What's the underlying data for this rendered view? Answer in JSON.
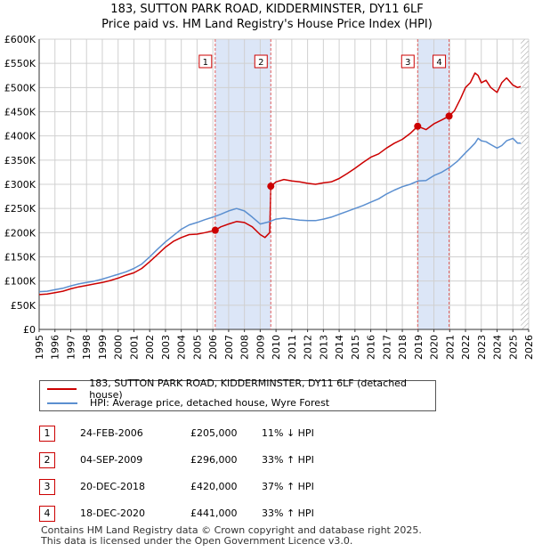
{
  "title_line1": "183, SUTTON PARK ROAD, KIDDERMINSTER, DY11 6LF",
  "title_line2": "Price paid vs. HM Land Registry's House Price Index (HPI)",
  "colors": {
    "property": "#cc0000",
    "hpi": "#5b8fd0",
    "shade": "#dce6f7",
    "grid": "#d0d0d0",
    "marker_line": "#e06060",
    "hatch": "#999999"
  },
  "chart_data": {
    "type": "line",
    "xlim": [
      1995,
      2026
    ],
    "ylim": [
      0,
      600000
    ],
    "x_ticks": [
      "1995",
      "1996",
      "1997",
      "1998",
      "1999",
      "2000",
      "2001",
      "2002",
      "2003",
      "2004",
      "2005",
      "2006",
      "2007",
      "2008",
      "2009",
      "2010",
      "2011",
      "2012",
      "2013",
      "2014",
      "2015",
      "2016",
      "2017",
      "2018",
      "2019",
      "2020",
      "2021",
      "2022",
      "2023",
      "2024",
      "2025",
      "2026"
    ],
    "y_ticks": [
      {
        "value": 0,
        "label": "£0"
      },
      {
        "value": 50000,
        "label": "£50K"
      },
      {
        "value": 100000,
        "label": "£100K"
      },
      {
        "value": 150000,
        "label": "£150K"
      },
      {
        "value": 200000,
        "label": "£200K"
      },
      {
        "value": 250000,
        "label": "£250K"
      },
      {
        "value": 300000,
        "label": "£300K"
      },
      {
        "value": 350000,
        "label": "£350K"
      },
      {
        "value": 400000,
        "label": "£400K"
      },
      {
        "value": 450000,
        "label": "£450K"
      },
      {
        "value": 500000,
        "label": "£500K"
      },
      {
        "value": 550000,
        "label": "£550K"
      },
      {
        "value": 600000,
        "label": "£600K"
      }
    ],
    "shaded_periods": [
      [
        2006.15,
        2009.67
      ],
      [
        2018.97,
        2020.96
      ]
    ],
    "future_hatch_start": 2025.5,
    "series": [
      {
        "name": "183, SUTTON PARK ROAD, KIDDERMINSTER, DY11 6LF (detached house)",
        "key": "property",
        "x": [
          1995,
          1995.5,
          1996,
          1996.5,
          1997,
          1997.5,
          1998,
          1998.5,
          1999,
          1999.5,
          2000,
          2000.5,
          2001,
          2001.5,
          2002,
          2002.5,
          2003,
          2003.5,
          2004,
          2004.5,
          2005,
          2005.5,
          2006.15,
          2006.5,
          2007,
          2007.5,
          2008,
          2008.5,
          2009,
          2009.3,
          2009.6,
          2009.67,
          2010,
          2010.5,
          2011,
          2011.5,
          2012,
          2012.5,
          2013,
          2013.5,
          2014,
          2014.5,
          2015,
          2015.5,
          2016,
          2016.5,
          2017,
          2017.5,
          2018,
          2018.5,
          2018.97,
          2019.5,
          2020,
          2020.5,
          2020.96,
          2021.3,
          2021.7,
          2022,
          2022.3,
          2022.6,
          2022.8,
          2023,
          2023.3,
          2023.6,
          2024,
          2024.3,
          2024.6,
          2025,
          2025.3,
          2025.5
        ],
        "y": [
          72000,
          73000,
          76000,
          79000,
          84000,
          88000,
          91000,
          94000,
          97000,
          101000,
          106000,
          112000,
          117000,
          126000,
          140000,
          155000,
          170000,
          182000,
          190000,
          196000,
          197000,
          200000,
          205000,
          212000,
          218000,
          223000,
          221000,
          212000,
          196000,
          190000,
          200000,
          296000,
          305000,
          310000,
          307000,
          305000,
          302000,
          300000,
          303000,
          305000,
          312000,
          322000,
          333000,
          345000,
          356000,
          363000,
          375000,
          385000,
          393000,
          405000,
          420000,
          413000,
          425000,
          433000,
          441000,
          452000,
          478000,
          500000,
          510000,
          530000,
          525000,
          510000,
          515000,
          500000,
          490000,
          510000,
          520000,
          505000,
          500000,
          502000
        ]
      },
      {
        "name": "HPI: Average price, detached house, Wyre Forest",
        "key": "hpi",
        "x": [
          1995,
          1995.5,
          1996,
          1996.5,
          1997,
          1997.5,
          1998,
          1998.5,
          1999,
          1999.5,
          2000,
          2000.5,
          2001,
          2001.5,
          2002,
          2002.5,
          2003,
          2003.5,
          2004,
          2004.5,
          2005,
          2005.5,
          2006,
          2006.5,
          2007,
          2007.5,
          2008,
          2008.5,
          2009,
          2009.5,
          2010,
          2010.5,
          2011,
          2011.5,
          2012,
          2012.5,
          2013,
          2013.5,
          2014,
          2014.5,
          2015,
          2015.5,
          2016,
          2016.5,
          2017,
          2017.5,
          2018,
          2018.5,
          2019,
          2019.5,
          2020,
          2020.5,
          2021,
          2021.5,
          2022,
          2022.3,
          2022.6,
          2022.8,
          2023,
          2023.3,
          2023.6,
          2024,
          2024.3,
          2024.6,
          2025,
          2025.3,
          2025.5
        ],
        "y": [
          78000,
          79000,
          82000,
          85000,
          90000,
          94000,
          97000,
          100000,
          104000,
          109000,
          114000,
          119000,
          126000,
          135000,
          150000,
          166000,
          181000,
          194000,
          207000,
          216000,
          221000,
          227000,
          232000,
          238000,
          245000,
          250000,
          245000,
          232000,
          218000,
          222000,
          228000,
          230000,
          228000,
          226000,
          225000,
          225000,
          228000,
          232000,
          238000,
          244000,
          250000,
          256000,
          263000,
          270000,
          280000,
          288000,
          295000,
          300000,
          307000,
          308000,
          318000,
          325000,
          335000,
          348000,
          365000,
          375000,
          385000,
          395000,
          390000,
          388000,
          382000,
          375000,
          380000,
          390000,
          395000,
          385000,
          385000
        ]
      }
    ],
    "markers": [
      {
        "id": "1",
        "x": 2006.15,
        "y": 205000
      },
      {
        "id": "2",
        "x": 2009.67,
        "y": 296000
      },
      {
        "id": "3",
        "x": 2018.97,
        "y": 420000
      },
      {
        "id": "4",
        "x": 2020.96,
        "y": 441000
      }
    ]
  },
  "legend": {
    "property_label": "183, SUTTON PARK ROAD, KIDDERMINSTER, DY11 6LF (detached house)",
    "hpi_label": "HPI: Average price, detached house, Wyre Forest"
  },
  "sales": [
    {
      "id": "1",
      "date": "24-FEB-2006",
      "price": "£205,000",
      "hpi": "11% ↓ HPI"
    },
    {
      "id": "2",
      "date": "04-SEP-2009",
      "price": "£296,000",
      "hpi": "33% ↑ HPI"
    },
    {
      "id": "3",
      "date": "20-DEC-2018",
      "price": "£420,000",
      "hpi": "37% ↑ HPI"
    },
    {
      "id": "4",
      "date": "18-DEC-2020",
      "price": "£441,000",
      "hpi": "33% ↑ HPI"
    }
  ],
  "footer_line1": "Contains HM Land Registry data © Crown copyright and database right 2025.",
  "footer_line2": "This data is licensed under the Open Government Licence v3.0."
}
